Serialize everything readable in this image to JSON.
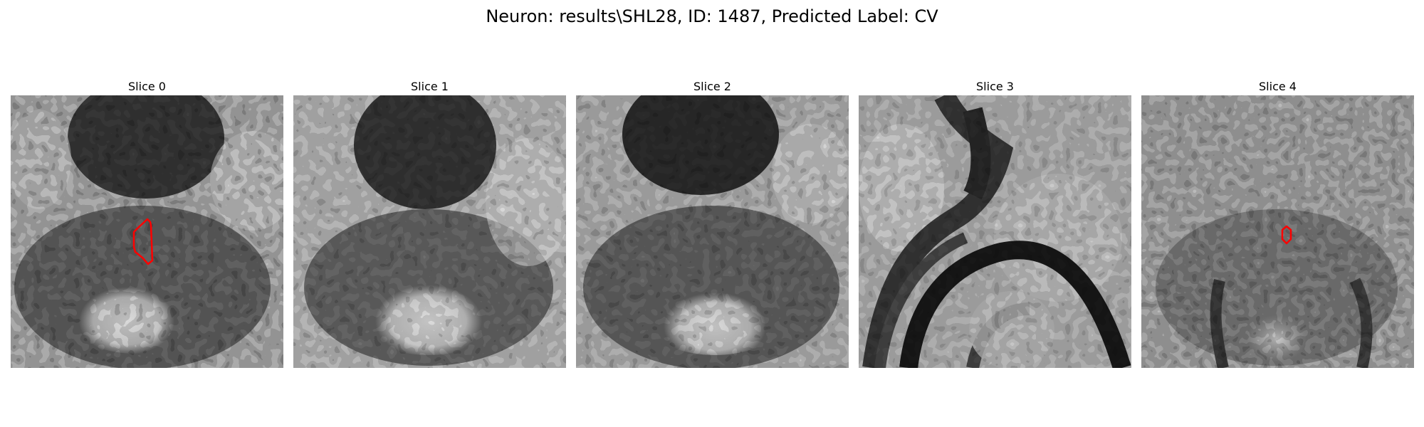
{
  "figure": {
    "title": "Neuron: results\\SHL28, ID: 1487, Predicted Label: CV"
  },
  "panels": [
    {
      "title": "Slice 0",
      "style": "s0",
      "has_roi": true
    },
    {
      "title": "Slice 1",
      "style": "s1",
      "has_roi": false
    },
    {
      "title": "Slice 2",
      "style": "s2",
      "has_roi": false
    },
    {
      "title": "Slice 3",
      "style": "s3",
      "has_roi": false
    },
    {
      "title": "Slice 4",
      "style": "s4",
      "has_roi": true
    }
  ],
  "colors": {
    "roi_outline": "#ff0000",
    "background": "#ffffff"
  },
  "colormap": "grayscale"
}
